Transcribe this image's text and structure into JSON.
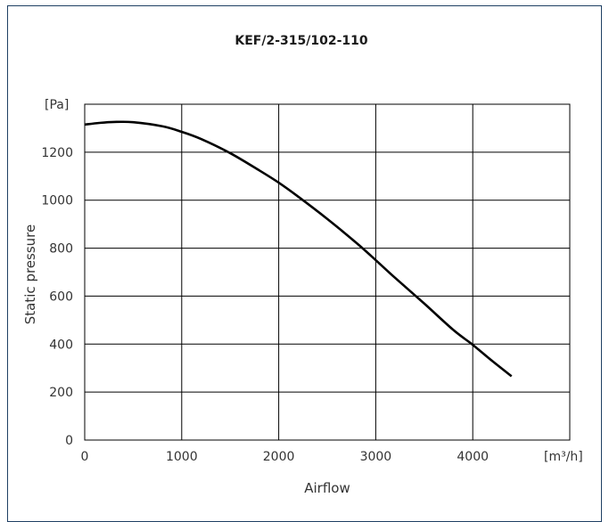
{
  "chart_data": {
    "type": "line",
    "title": "KEF/2-315/102-110",
    "xlabel": "Airflow",
    "ylabel": "Static pressure",
    "x_unit": "[m³/h]",
    "y_unit": "[Pa]",
    "xlim": [
      0,
      5000
    ],
    "ylim": [
      0,
      1400
    ],
    "x_ticks": [
      0,
      1000,
      2000,
      3000,
      4000
    ],
    "y_ticks": [
      0,
      200,
      400,
      600,
      800,
      1000,
      1200
    ],
    "x_tick_labels": [
      "0",
      "1000",
      "2000",
      "3000",
      "4000"
    ],
    "y_tick_labels": [
      "0",
      "200",
      "400",
      "600",
      "800",
      "1000",
      "1200"
    ],
    "grid": true,
    "series": [
      {
        "x": [
          0,
          150,
          300,
          500,
          800,
          1000,
          1200,
          1500,
          1800,
          2000,
          2200,
          2500,
          2800,
          3000,
          3200,
          3500,
          3800,
          4000,
          4200,
          4400
        ],
        "y": [
          1315,
          1322,
          1326,
          1325,
          1308,
          1285,
          1255,
          1196,
          1124,
          1073,
          1015,
          922,
          822,
          750,
          676,
          569,
          459,
          397,
          330,
          266
        ]
      }
    ]
  }
}
